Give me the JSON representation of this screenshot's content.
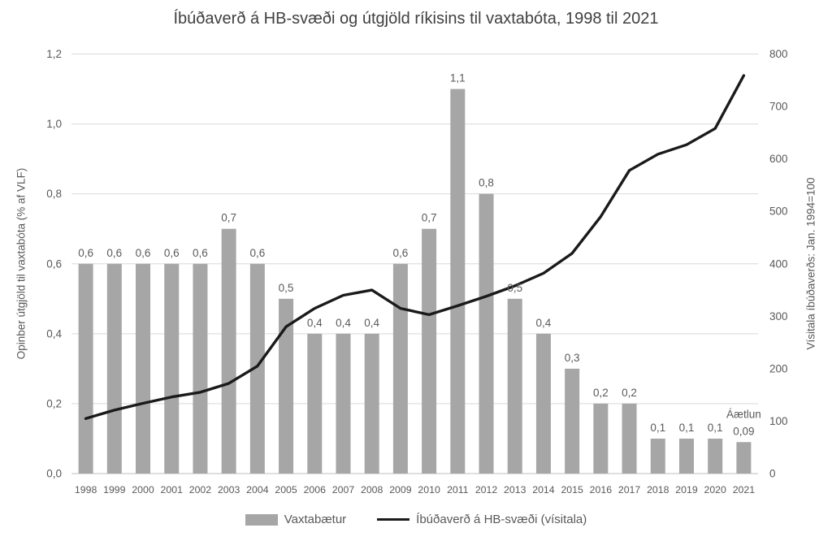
{
  "title": "Íbúðaverð á HB-svæði og útgjöld ríkisins til vaxtabóta, 1998 til 2021",
  "left_axis_title": "Opinber útgjöld til vaxtabóta (% af VLF)",
  "right_axis_title": "Vísitala íbúðaverðs: Jan. 1994=100",
  "legend": {
    "bar_label": "Vaxtabætur",
    "line_label": "Íbúðaverð á HB-svæði (vísitala)"
  },
  "colors": {
    "bar": "#a6a6a6",
    "line": "#1a1a1a",
    "grid": "#d9d9d9",
    "axis_line": "#bfbfbf",
    "label_text": "#595959",
    "title_text": "#404040"
  },
  "chart_data": {
    "type": "combo-bar-line",
    "categories": [
      "1998",
      "1999",
      "2000",
      "2001",
      "2002",
      "2003",
      "2004",
      "2005",
      "2006",
      "2007",
      "2008",
      "2009",
      "2010",
      "2011",
      "2012",
      "2013",
      "2014",
      "2015",
      "2016",
      "2017",
      "2018",
      "2019",
      "2020",
      "2021"
    ],
    "series": [
      {
        "name": "Vaxtabætur",
        "type": "bar",
        "axis": "left",
        "values": [
          0.6,
          0.6,
          0.6,
          0.6,
          0.6,
          0.7,
          0.6,
          0.5,
          0.4,
          0.4,
          0.4,
          0.6,
          0.7,
          1.1,
          0.8,
          0.5,
          0.4,
          0.3,
          0.2,
          0.2,
          0.1,
          0.1,
          0.1,
          0.09
        ],
        "data_labels": [
          "0,6",
          "0,6",
          "0,6",
          "0,6",
          "0,6",
          "0,7",
          "0,6",
          "0,5",
          "0,4",
          "0,4",
          "0,4",
          "0,6",
          "0,7",
          "1,1",
          "0,8",
          "0,5",
          "0,4",
          "0,3",
          "0,2",
          "0,2",
          "0,1",
          "0,1",
          "0,1",
          "0,09"
        ]
      },
      {
        "name": "Íbúðaverð á HB-svæði (vísitala)",
        "type": "line",
        "axis": "right",
        "values": [
          105,
          121,
          134,
          146,
          155,
          172,
          205,
          280,
          315,
          340,
          350,
          315,
          303,
          320,
          338,
          358,
          382,
          420,
          490,
          578,
          609,
          627,
          658,
          759
        ]
      }
    ],
    "annotation": {
      "text": "Áætlun",
      "category": "2021"
    },
    "left_axis": {
      "min": 0,
      "max": 1.2,
      "tick_labels": [
        "0,0",
        "0,2",
        "0,4",
        "0,6",
        "0,8",
        "1,0",
        "1,2"
      ],
      "tick_values": [
        0,
        0.2,
        0.4,
        0.6,
        0.8,
        1.0,
        1.2
      ]
    },
    "right_axis": {
      "min": 0,
      "max": 800,
      "tick_labels": [
        "0",
        "100",
        "200",
        "300",
        "400",
        "500",
        "600",
        "700",
        "800"
      ],
      "tick_values": [
        0,
        100,
        200,
        300,
        400,
        500,
        600,
        700,
        800
      ]
    },
    "grid": true,
    "legend_position": "bottom"
  }
}
